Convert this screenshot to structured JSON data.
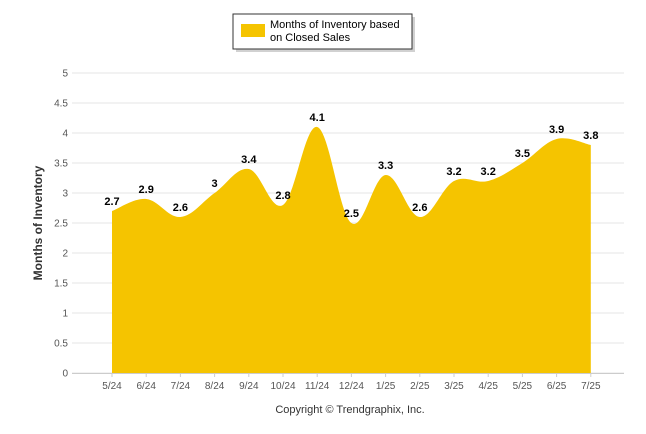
{
  "chart_data": {
    "type": "area",
    "categories": [
      "5/24",
      "6/24",
      "7/24",
      "8/24",
      "9/24",
      "10/24",
      "11/24",
      "12/24",
      "1/25",
      "2/25",
      "3/25",
      "4/25",
      "5/25",
      "6/25",
      "7/25"
    ],
    "series": [
      {
        "name": "Months of Inventory based on Closed Sales",
        "name_lines": [
          "Months of Inventory based",
          "on Closed Sales"
        ],
        "values": [
          2.7,
          2.9,
          2.6,
          3,
          3.4,
          2.8,
          4.1,
          2.5,
          3.3,
          2.6,
          3.2,
          3.2,
          3.5,
          3.9,
          3.8
        ],
        "color": "#F5C400"
      }
    ],
    "ylabel": "Months of Inventory",
    "xlabel": "",
    "ylim": [
      0,
      5
    ],
    "yticks": [
      0,
      0.5,
      1,
      1.5,
      2,
      2.5,
      3,
      3.5,
      4,
      4.5,
      5
    ],
    "ytick_labels": [
      "0",
      "0.5",
      "1",
      "1.5",
      "2",
      "2.5",
      "3",
      "3.5",
      "4",
      "4.5",
      "5"
    ],
    "data_labels": [
      "2.7",
      "2.9",
      "2.6",
      "3",
      "3.4",
      "2.8",
      "4.1",
      "2.5",
      "3.3",
      "2.6",
      "3.2",
      "3.2",
      "3.5",
      "3.9",
      "3.8"
    ],
    "grid": true,
    "legend_position": "top-center",
    "credit": "Copyright © Trendgraphix, Inc."
  }
}
